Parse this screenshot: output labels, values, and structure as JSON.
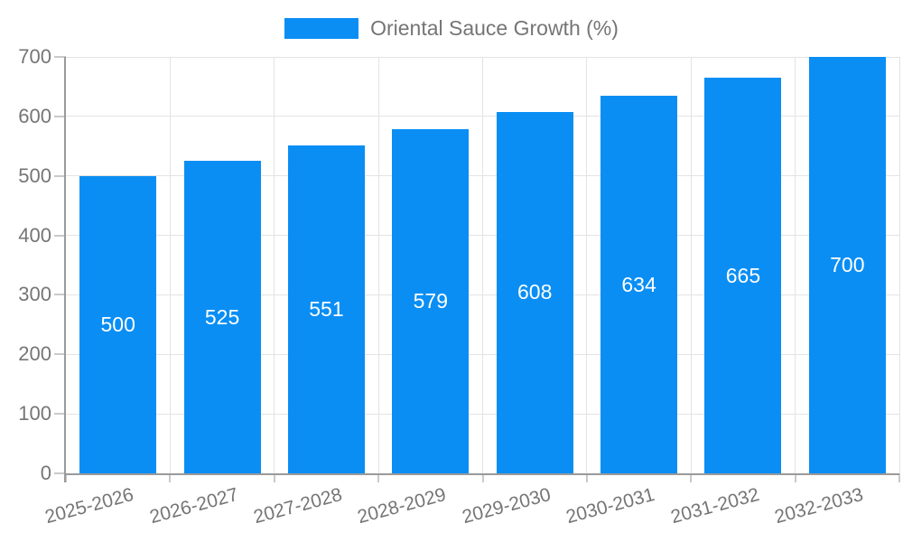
{
  "chart_data": {
    "type": "bar",
    "title": "",
    "legend": {
      "label": "Oriental Sauce Growth (%)",
      "position": "top"
    },
    "categories": [
      "2025-2026",
      "2026-2027",
      "2027-2028",
      "2028-2029",
      "2029-2030",
      "2030-2031",
      "2031-2032",
      "2032-2033"
    ],
    "values": [
      500,
      525,
      551,
      579,
      608,
      634,
      665,
      700
    ],
    "value_labels_inside_bars": true,
    "xlabel": "",
    "ylabel": "",
    "ylim": [
      0,
      700
    ],
    "yticks": [
      0,
      100,
      200,
      300,
      400,
      500,
      600,
      700
    ],
    "grid": true,
    "colors": {
      "bar": "#0a8ef4",
      "value_label": "#ffffff",
      "grid": "#e3e3e3",
      "tick": "#c9c9c9",
      "axis": "#9a9a9a",
      "tick_label": "#757575",
      "legend_text": "#757575",
      "background": "#ffffff"
    }
  }
}
